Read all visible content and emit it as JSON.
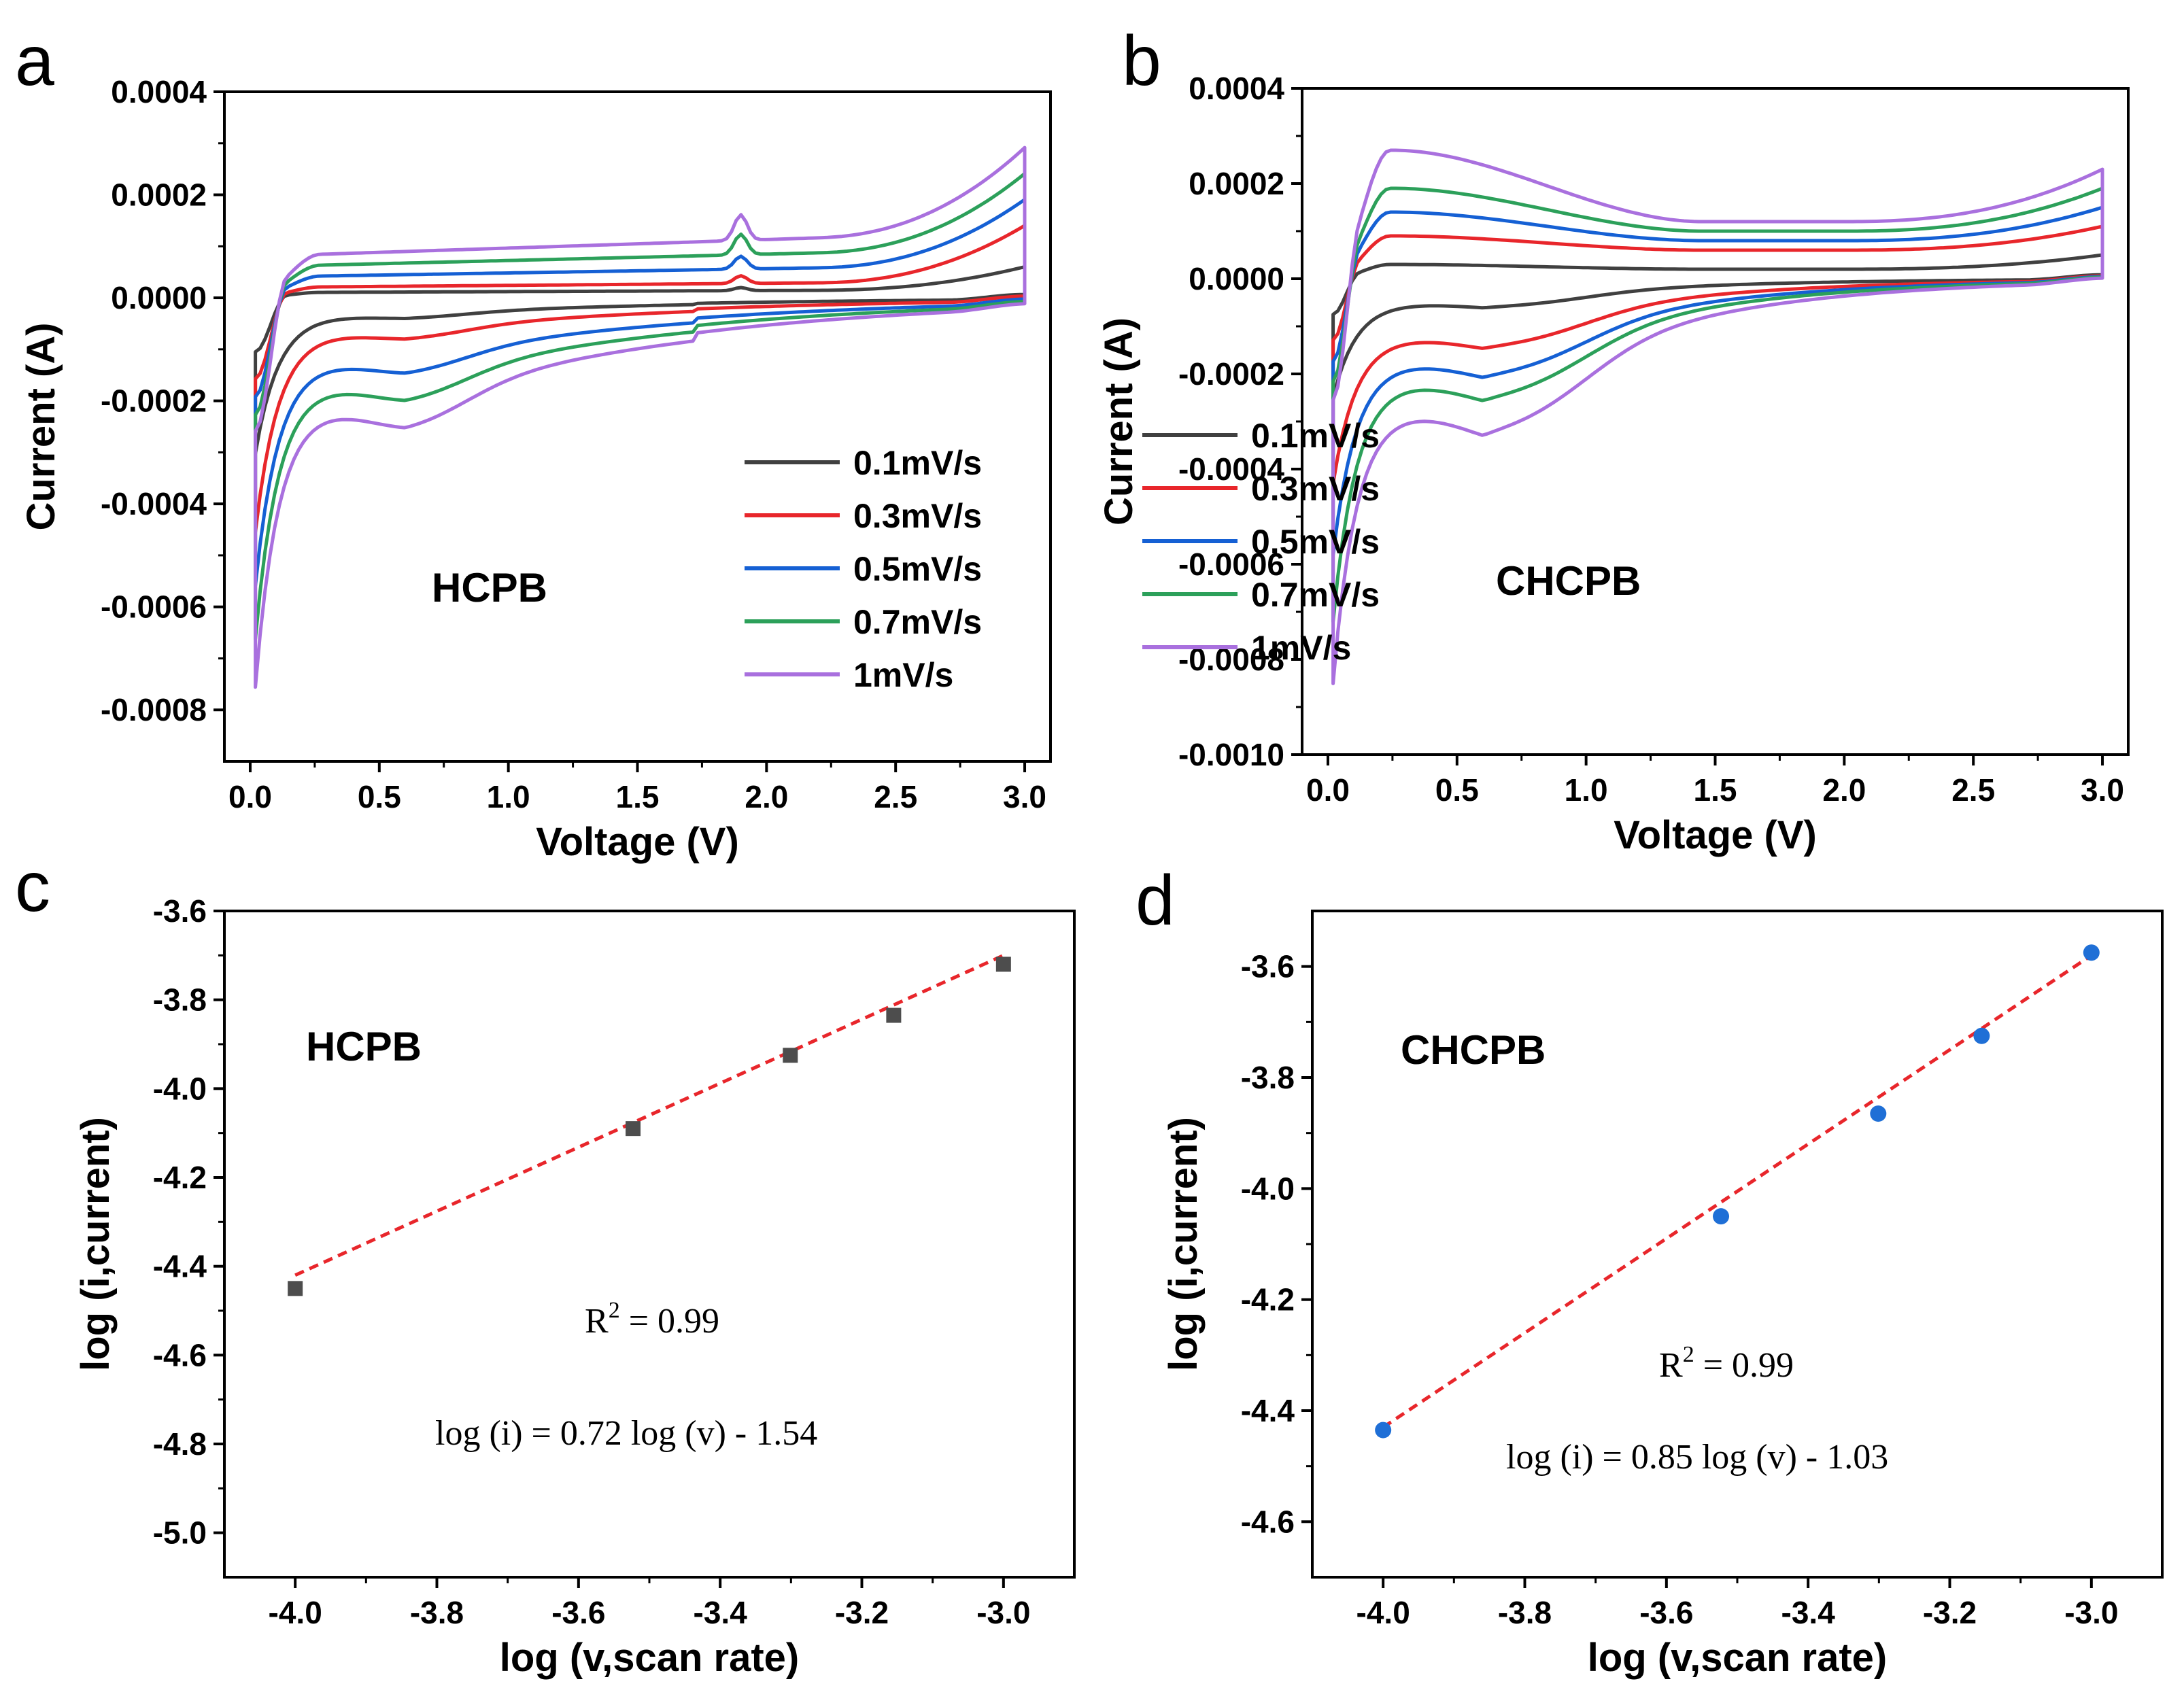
{
  "chart_data": [
    {
      "id": "a",
      "panel_label": "a",
      "type": "line",
      "title": "",
      "annotation": "HCPB",
      "xlabel": "Voltage (V)",
      "ylabel": "Current (A)",
      "xlim": [
        -0.1,
        3.1
      ],
      "ylim": [
        -0.0009,
        0.0004
      ],
      "xticks": [
        0,
        0.5,
        1.0,
        1.5,
        2.0,
        2.5,
        3.0
      ],
      "xtick_labels": [
        "0.0",
        "0.5",
        "1.0",
        "1.5",
        "2.0",
        "2.5",
        "3.0"
      ],
      "yticks": [
        0.0004,
        0.0002,
        0,
        -0.0002,
        -0.0004,
        -0.0006,
        -0.0008
      ],
      "ytick_labels": [
        "0.0004",
        "0.0002",
        "0.0000",
        "-0.0002",
        "-0.0004",
        "-0.0006",
        "-0.0008"
      ],
      "legend": {
        "position": "lower-right"
      },
      "series": [
        {
          "name": "0.1mV/s",
          "color": "#404040",
          "min": -0.0003,
          "peakV": 0.08,
          "plateauUp": 1e-05,
          "plateauDown": -3e-05,
          "hump": 6e-06,
          "endHigh": 6e-05
        },
        {
          "name": "0.3mV/s",
          "color": "#e8262b",
          "min": -0.00045,
          "peakV": 0.07,
          "plateauUp": 2e-05,
          "plateauDown": -6e-05,
          "hump": 1.5e-05,
          "endHigh": 0.00014
        },
        {
          "name": "0.5mV/s",
          "color": "#1560d4",
          "min": -0.00055,
          "peakV": 0.06,
          "plateauUp": 4e-05,
          "plateauDown": -0.00011,
          "hump": 2.5e-05,
          "endHigh": 0.00019
        },
        {
          "name": "0.7mV/s",
          "color": "#2ca05a",
          "min": -0.00065,
          "peakV": 0.06,
          "plateauUp": 6e-05,
          "plateauDown": -0.00015,
          "hump": 4e-05,
          "endHigh": 0.00024
        },
        {
          "name": "1mV/s",
          "color": "#a970de",
          "min": -0.00074,
          "peakV": 0.05,
          "plateauUp": 8e-05,
          "plateauDown": -0.00019,
          "hump": 5e-05,
          "endHigh": 0.00029
        }
      ]
    },
    {
      "id": "b",
      "panel_label": "b",
      "type": "line",
      "title": "",
      "annotation": "CHCPB",
      "xlabel": "Voltage (V)",
      "ylabel": "Current (A)",
      "xlim": [
        -0.1,
        3.1
      ],
      "ylim": [
        -0.001,
        0.0004
      ],
      "xticks": [
        0,
        0.5,
        1.0,
        1.5,
        2.0,
        2.5,
        3.0
      ],
      "xtick_labels": [
        "0.0",
        "0.5",
        "1.0",
        "1.5",
        "2.0",
        "2.5",
        "3.0"
      ],
      "yticks": [
        0.0004,
        0.0002,
        0,
        -0.0002,
        -0.0004,
        -0.0006,
        -0.0008,
        -0.001
      ],
      "ytick_labels": [
        "0.0004",
        "0.0002",
        "0.0000",
        "-0.0002",
        "-0.0004",
        "-0.0006",
        "-0.0008",
        "-0.0010"
      ],
      "legend": {
        "position": "middle-right"
      },
      "series": [
        {
          "name": "0.1mV/s",
          "color": "#404040",
          "min": -0.00025,
          "peakV": 0.06,
          "upPeak": 3e-05,
          "plateauUp": 2e-05,
          "plateauDown": -5e-05,
          "endHigh": 5e-05
        },
        {
          "name": "0.3mV/s",
          "color": "#e8262b",
          "min": -0.00043,
          "peakV": 0.05,
          "upPeak": 9e-05,
          "plateauUp": 6e-05,
          "plateauDown": -0.00012,
          "endHigh": 0.00011
        },
        {
          "name": "0.5mV/s",
          "color": "#1560d4",
          "min": -0.00058,
          "peakV": 0.04,
          "upPeak": 0.00014,
          "plateauUp": 8e-05,
          "plateauDown": -0.00017,
          "endHigh": 0.00015
        },
        {
          "name": "0.7mV/s",
          "color": "#2ca05a",
          "min": -0.00072,
          "peakV": 0.04,
          "upPeak": 0.00019,
          "plateauUp": 0.0001,
          "plateauDown": -0.00021,
          "endHigh": 0.00019
        },
        {
          "name": "1mV/s",
          "color": "#a970de",
          "min": -0.00085,
          "peakV": 0.03,
          "upPeak": 0.00027,
          "plateauUp": 0.00012,
          "plateauDown": -0.00027,
          "endHigh": 0.00023
        }
      ]
    },
    {
      "id": "c",
      "panel_label": "c",
      "type": "scatter",
      "title": "",
      "annotation": "HCPB",
      "xlabel": "log (v,scan rate)",
      "ylabel": "log (i,current)",
      "xlim": [
        -4.1,
        -2.9
      ],
      "ylim": [
        -5.1,
        -3.6
      ],
      "xticks": [
        -4.0,
        -3.8,
        -3.6,
        -3.4,
        -3.2,
        -3.0
      ],
      "xtick_labels": [
        "-4.0",
        "-3.8",
        "-3.6",
        "-3.4",
        "-3.2",
        "-3.0"
      ],
      "yticks": [
        -3.6,
        -3.8,
        -4.0,
        -4.2,
        -4.4,
        -4.6,
        -4.8,
        -5.0
      ],
      "ytick_labels": [
        "-3.6",
        "-3.8",
        "-4.0",
        "-4.2",
        "-4.4",
        "-4.6",
        "-4.8",
        "-5.0"
      ],
      "marker": "square",
      "marker_color": "#4d4d4d",
      "fit_color": "#e8262b",
      "x": [
        -4.0,
        -3.523,
        -3.301,
        -3.155,
        -3.0
      ],
      "y": [
        -4.45,
        -4.09,
        -3.925,
        -3.835,
        -3.72
      ],
      "fit": {
        "slope": 0.72,
        "intercept": -1.54,
        "x_range": [
          -4.0,
          -3.0
        ]
      },
      "r2_label": "R",
      "r2_sup": "2",
      "r2_value": " = 0.99",
      "equation": "log (i) = 0.72 log (v) - 1.54"
    },
    {
      "id": "d",
      "panel_label": "d",
      "type": "scatter",
      "title": "",
      "annotation": "CHCPB",
      "xlabel": "log (v,scan rate)",
      "ylabel": "log (i,current)",
      "xlim": [
        -4.1,
        -2.9
      ],
      "ylim": [
        -4.7,
        -3.5
      ],
      "xticks": [
        -4.0,
        -3.8,
        -3.6,
        -3.4,
        -3.2,
        -3.0
      ],
      "xtick_labels": [
        "-4.0",
        "-3.8",
        "-3.6",
        "-3.4",
        "-3.2",
        "-3.0"
      ],
      "yticks": [
        -3.6,
        -3.8,
        -4.0,
        -4.2,
        -4.4,
        -4.6
      ],
      "ytick_labels": [
        "-3.6",
        "-3.8",
        "-4.0",
        "-4.2",
        "-4.4",
        "-4.6"
      ],
      "marker": "circle",
      "marker_color": "#1f6fd6",
      "fit_color": "#e8262b",
      "x": [
        -4.0,
        -3.523,
        -3.301,
        -3.155,
        -3.0
      ],
      "y": [
        -4.435,
        -4.05,
        -3.865,
        -3.725,
        -3.575
      ],
      "fit": {
        "slope": 0.85,
        "intercept": -1.03,
        "x_range": [
          -4.0,
          -3.0
        ]
      },
      "r2_label": "R",
      "r2_sup": "2",
      "r2_value": " = 0.99",
      "equation": "log (i) = 0.85 log (v) - 1.03"
    }
  ]
}
